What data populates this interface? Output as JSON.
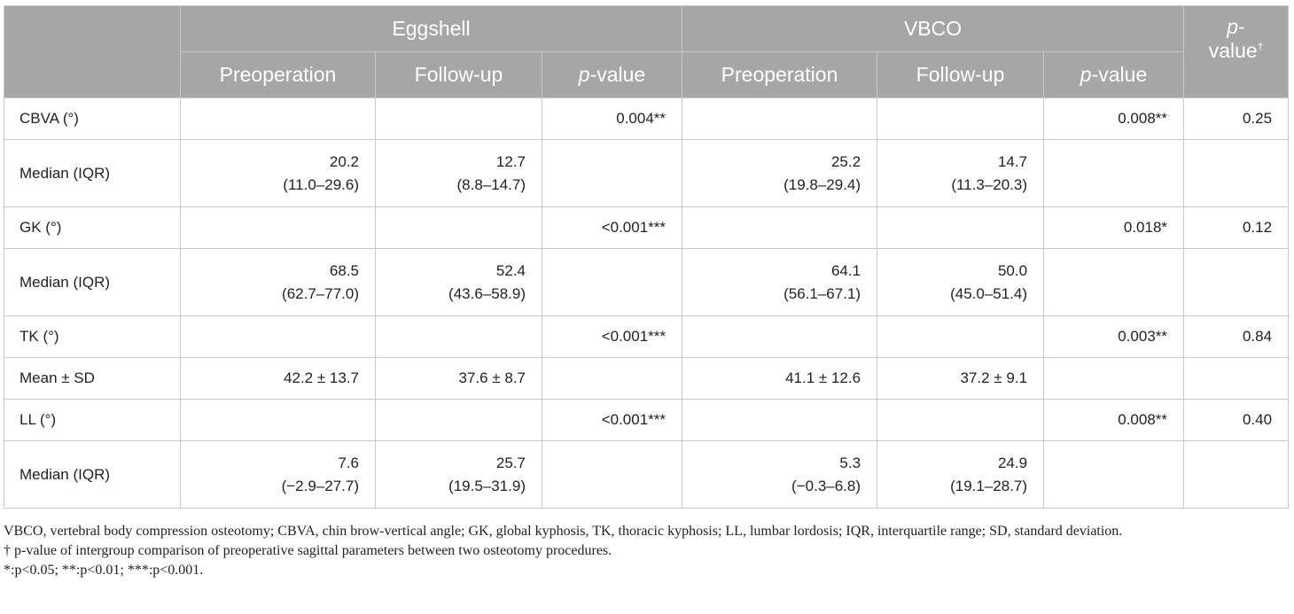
{
  "header": {
    "group1": "Eggshell",
    "group2": "VBCO",
    "pvalue_label_italic": "p",
    "pvalue_label_rest": "-value",
    "dagger": "†",
    "sub_preop": "Preoperation",
    "sub_followup": "Follow-up"
  },
  "rows": [
    {
      "label": "CBVA (°)",
      "egg_pre": [
        "",
        ""
      ],
      "egg_fu": [
        "",
        ""
      ],
      "egg_p": "0.004**",
      "vbco_pre": [
        "",
        ""
      ],
      "vbco_fu": [
        "",
        ""
      ],
      "vbco_p": "0.008**",
      "inter_p": "0.25"
    },
    {
      "label": "Median (IQR)",
      "egg_pre": [
        "20.2",
        "(11.0–29.6)"
      ],
      "egg_fu": [
        "12.7",
        "(8.8–14.7)"
      ],
      "egg_p": "",
      "vbco_pre": [
        "25.2",
        "(19.8–29.4)"
      ],
      "vbco_fu": [
        "14.7",
        "(11.3–20.3)"
      ],
      "vbco_p": "",
      "inter_p": ""
    },
    {
      "label": "GK (°)",
      "egg_pre": [
        "",
        ""
      ],
      "egg_fu": [
        "",
        ""
      ],
      "egg_p": "<0.001***",
      "vbco_pre": [
        "",
        ""
      ],
      "vbco_fu": [
        "",
        ""
      ],
      "vbco_p": "0.018*",
      "inter_p": "0.12"
    },
    {
      "label": "Median (IQR)",
      "egg_pre": [
        "68.5",
        "(62.7–77.0)"
      ],
      "egg_fu": [
        "52.4",
        "(43.6–58.9)"
      ],
      "egg_p": "",
      "vbco_pre": [
        "64.1",
        "(56.1–67.1)"
      ],
      "vbco_fu": [
        "50.0",
        "(45.0–51.4)"
      ],
      "vbco_p": "",
      "inter_p": ""
    },
    {
      "label": "TK (°)",
      "egg_pre": [
        "",
        ""
      ],
      "egg_fu": [
        "",
        ""
      ],
      "egg_p": "<0.001***",
      "vbco_pre": [
        "",
        ""
      ],
      "vbco_fu": [
        "",
        ""
      ],
      "vbco_p": "0.003**",
      "inter_p": "0.84"
    },
    {
      "label": "Mean ± SD",
      "egg_pre": [
        "42.2 ± 13.7",
        ""
      ],
      "egg_fu": [
        "37.6 ± 8.7",
        ""
      ],
      "egg_p": "",
      "vbco_pre": [
        "41.1 ± 12.6",
        ""
      ],
      "vbco_fu": [
        "37.2 ± 9.1",
        ""
      ],
      "vbco_p": "",
      "inter_p": ""
    },
    {
      "label": "LL (°)",
      "egg_pre": [
        "",
        ""
      ],
      "egg_fu": [
        "",
        ""
      ],
      "egg_p": "<0.001***",
      "vbco_pre": [
        "",
        ""
      ],
      "vbco_fu": [
        "",
        ""
      ],
      "vbco_p": "0.008**",
      "inter_p": "0.40"
    },
    {
      "label": "Median (IQR)",
      "egg_pre": [
        "7.6",
        "(−2.9–27.7)"
      ],
      "egg_fu": [
        "25.7",
        "(19.5–31.9)"
      ],
      "egg_p": "",
      "vbco_pre": [
        "5.3",
        "(−0.3–6.8)"
      ],
      "vbco_fu": [
        "24.9",
        "(19.1–28.7)"
      ],
      "vbco_p": "",
      "inter_p": ""
    }
  ],
  "notes": {
    "abbrev": "VBCO, vertebral body compression osteotomy; CBVA, chin brow-vertical angle; GK, global kyphosis, TK, thoracic kyphosis; LL, lumbar lordosis; IQR, interquartile range; SD, standard deviation.",
    "dagger": "† p-value of intergroup comparison of preoperative sagittal parameters between two osteotomy procedures.",
    "sig": "*:p<0.05; **:p<0.01; ***:p<0.001."
  },
  "colors": {
    "header_bg": "#a6a6a6",
    "header_text": "#ffffff",
    "border": "#c8c8c8"
  }
}
